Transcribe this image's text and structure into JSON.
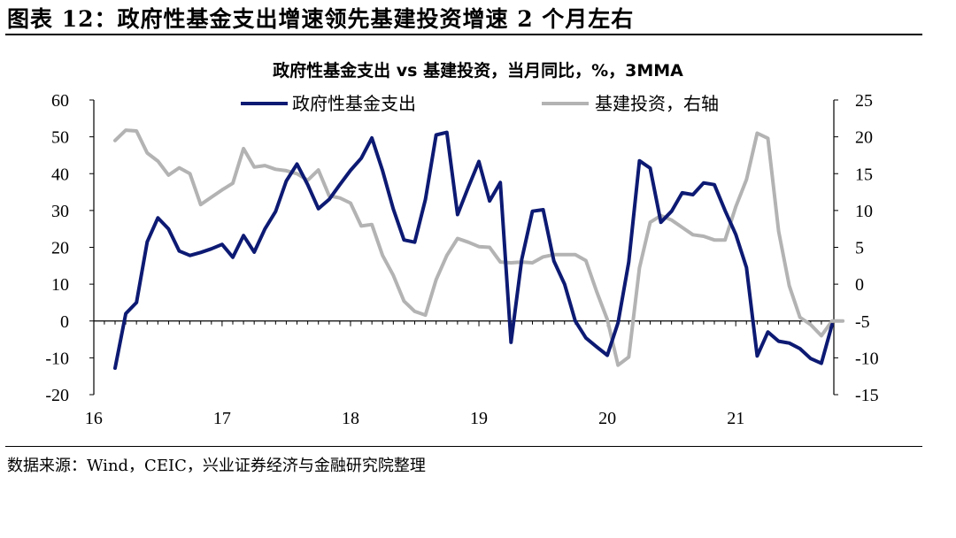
{
  "header": {
    "figure_title": "图表 12：政府性基金支出增速领先基建投资增速 2 个月左右"
  },
  "footer": {
    "source": "数据来源：Wind，CEIC，兴业证券经济与金融研究院整理"
  },
  "colors": {
    "gov_fund": "#0d1a73",
    "infra": "#b3b3b3",
    "axis": "#000000"
  },
  "chart_data": {
    "type": "line",
    "title": "政府性基金支出 vs 基建投资，当月同比，%，3MMA",
    "x_tick_labels": [
      "16",
      "17",
      "18",
      "19",
      "20",
      "21"
    ],
    "left_y_ticks": [
      "60",
      "50",
      "40",
      "30",
      "20",
      "10",
      "0",
      "-10",
      "-20"
    ],
    "right_y_ticks": [
      "25",
      "20",
      "15",
      "10",
      "5",
      "0",
      "-5",
      "-10",
      "-15"
    ],
    "ylim_left": [
      -20,
      60
    ],
    "ylim_right": [
      -15,
      25
    ],
    "legend_position": "top",
    "series": [
      {
        "name": "政府性基金支出",
        "axis": "left",
        "values": [
          -12.8,
          2,
          5,
          21.5,
          28,
          25,
          19,
          17.8,
          18.6,
          19.6,
          20.8,
          17.3,
          23.2,
          18.7,
          25,
          29.7,
          38,
          42.6,
          37,
          30.5,
          33,
          37,
          40.9,
          44.2,
          49.7,
          40.8,
          30.4,
          22,
          21.4,
          33,
          50.5,
          51.2,
          28.9,
          36.3,
          43.3,
          32.6,
          37.6,
          -5.8,
          16.7,
          29.8,
          30.2,
          16.3,
          10,
          0,
          -4.6,
          -7,
          -9.3,
          -0.5,
          16,
          43.5,
          41.5,
          26.8,
          29.8,
          34.8,
          34.3,
          37.5,
          37,
          30,
          23.5,
          14.5,
          -9.5,
          -3,
          -5.5,
          -6,
          -7.5,
          -10.2,
          -11.5,
          -1
        ]
      },
      {
        "name": "基建投资，右轴",
        "axis": "right",
        "values": [
          19.5,
          20.9,
          20.8,
          17.8,
          16.7,
          14.8,
          15.8,
          15,
          10.8,
          11.8,
          12.8,
          13.7,
          18.4,
          15.9,
          16.1,
          15.6,
          15.4,
          15,
          14.1,
          15.5,
          12,
          11.7,
          11,
          7.9,
          8.1,
          3.9,
          1.2,
          -2.3,
          -3.7,
          -4.2,
          0.6,
          3.9,
          6.2,
          5.7,
          5.1,
          5,
          3,
          2.9,
          3,
          2.9,
          3.7,
          4,
          4,
          4,
          3.2,
          -1,
          -4.8,
          -11,
          -9.9,
          2.2,
          8.4,
          9.3,
          8.7,
          7.7,
          6.7,
          6.5,
          6,
          6,
          10.5,
          14.2,
          20.5,
          19.8,
          7.2,
          -0.2,
          -4.5,
          -5.5,
          -7,
          -5,
          -5
        ]
      }
    ]
  }
}
